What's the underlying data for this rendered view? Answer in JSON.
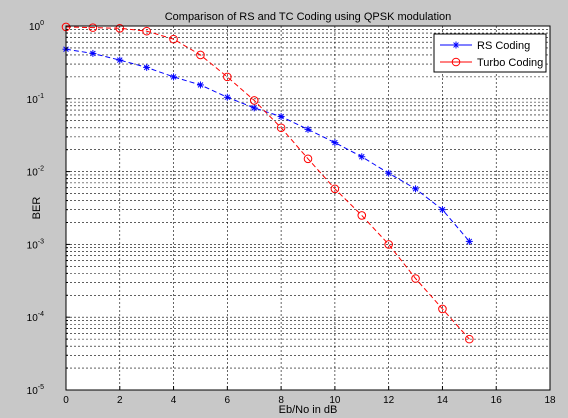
{
  "chart_data": {
    "type": "line",
    "title": "Comparison of RS and TC Coding using QPSK modulation",
    "xlabel": "Eb/No in dB",
    "ylabel": "BER",
    "xlim": [
      0,
      18
    ],
    "ylim": [
      1e-05,
      1
    ],
    "yscale": "log",
    "grid": true,
    "legend_position": "top-right",
    "x_ticks": [
      "0",
      "2",
      "4",
      "6",
      "8",
      "10",
      "12",
      "14",
      "16",
      "18"
    ],
    "y_ticks": [
      {
        "base": "10",
        "exp": "0"
      },
      {
        "base": "10",
        "exp": "-1"
      },
      {
        "base": "10",
        "exp": "-2"
      },
      {
        "base": "10",
        "exp": "-3"
      },
      {
        "base": "10",
        "exp": "-4"
      },
      {
        "base": "10",
        "exp": "-5"
      }
    ],
    "series": [
      {
        "name": "RS Coding",
        "color": "#0000ff",
        "marker": "star",
        "x": [
          0,
          1,
          2,
          3,
          4,
          5,
          6,
          7,
          8,
          9,
          10,
          11,
          12,
          13,
          14,
          15
        ],
        "y": [
          0.48,
          0.42,
          0.34,
          0.27,
          0.2,
          0.155,
          0.105,
          0.075,
          0.057,
          0.038,
          0.025,
          0.016,
          0.0095,
          0.0058,
          0.003,
          0.0011
        ]
      },
      {
        "name": "Turbo Coding",
        "color": "#ff0000",
        "marker": "circle",
        "x": [
          0,
          1,
          2,
          3,
          4,
          5,
          6,
          7,
          8,
          9,
          10,
          11,
          12,
          13,
          14,
          15
        ],
        "y": [
          0.97,
          0.95,
          0.93,
          0.85,
          0.66,
          0.4,
          0.2,
          0.095,
          0.04,
          0.015,
          0.0058,
          0.0025,
          0.001,
          0.00034,
          0.00013,
          5e-05
        ]
      }
    ]
  }
}
